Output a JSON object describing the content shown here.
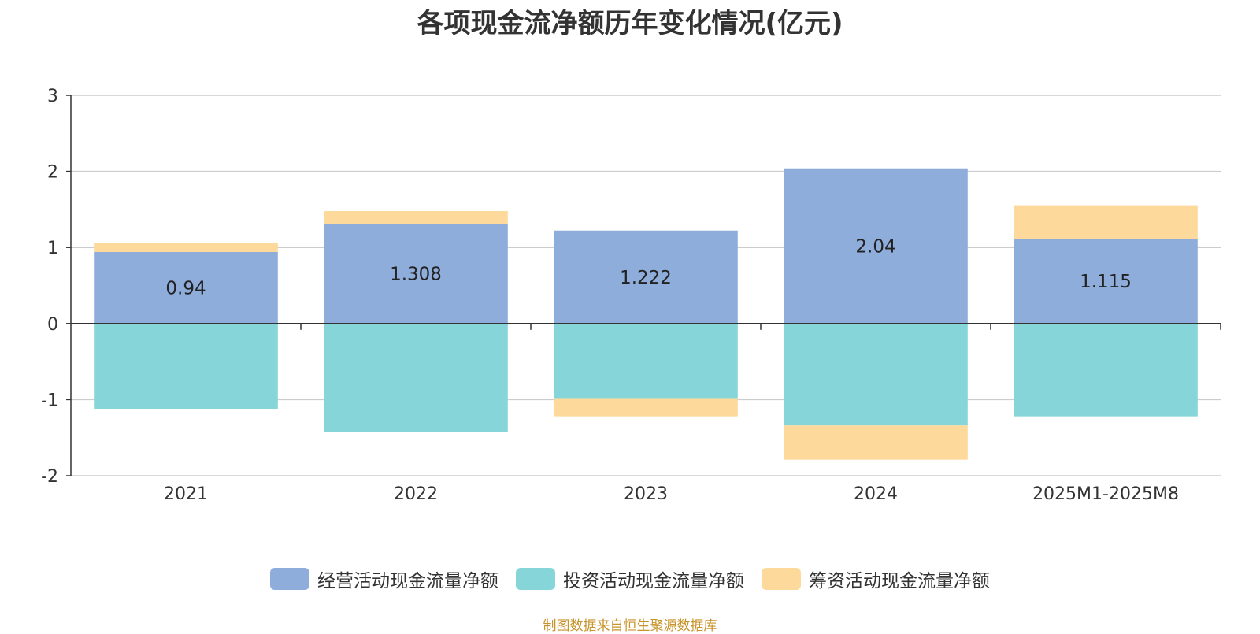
{
  "chart_data": {
    "type": "bar",
    "stacked": true,
    "title": "各项现金流净额历年变化情况(亿元)",
    "categories": [
      "2021",
      "2022",
      "2023",
      "2024",
      "2025M1-2025M8"
    ],
    "series": [
      {
        "name": "经营活动现金流量净额",
        "color": "#8eaddb",
        "values": [
          0.94,
          1.308,
          1.222,
          2.04,
          1.115
        ],
        "labels": [
          "0.94",
          "1.308",
          "1.222",
          "2.04",
          "1.115"
        ]
      },
      {
        "name": "投资活动现金流量净额",
        "color": "#86d5d8",
        "values": [
          -1.12,
          -1.42,
          -0.98,
          -1.34,
          -1.22
        ]
      },
      {
        "name": "筹资活动现金流量净额",
        "color": "#fdd99b",
        "values": [
          0.12,
          0.17,
          -0.24,
          -0.45,
          0.44
        ]
      }
    ],
    "y_ticks": [
      "3",
      "2",
      "1",
      "0",
      "-1",
      "-2"
    ],
    "ylim": [
      -2,
      3
    ],
    "grid": true,
    "legend_position": "bottom",
    "source": "制图数据来自恒生聚源数据库"
  }
}
